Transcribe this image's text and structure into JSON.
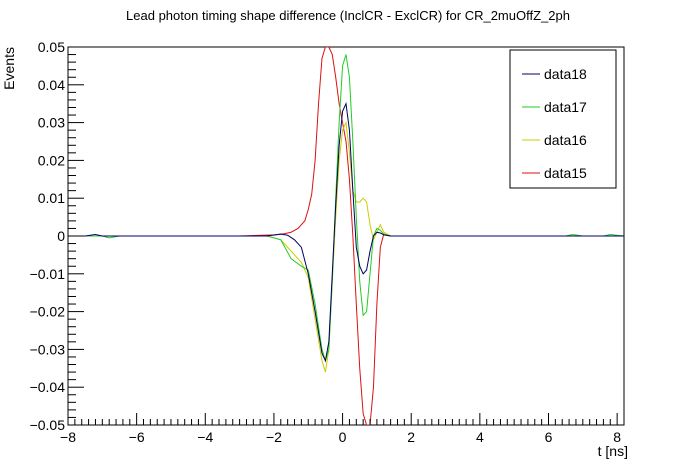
{
  "chart_data": {
    "type": "line",
    "title": "Lead photon timing shape difference (InclCR - ExclCR) for CR_2muOffZ_2ph",
    "xlabel": "t [ns]",
    "ylabel": "Events",
    "xlim": [
      -8,
      8.2
    ],
    "ylim": [
      -0.05,
      0.05
    ],
    "grid": false,
    "legend_position": "top-right",
    "x_ticks": [
      {
        "v": -8,
        "label": "−8"
      },
      {
        "v": -6,
        "label": "−6"
      },
      {
        "v": -4,
        "label": "−4"
      },
      {
        "v": -2,
        "label": "−2"
      },
      {
        "v": 0,
        "label": "0"
      },
      {
        "v": 2,
        "label": "2"
      },
      {
        "v": 4,
        "label": "4"
      },
      {
        "v": 6,
        "label": "6"
      },
      {
        "v": 8,
        "label": "8"
      }
    ],
    "y_ticks": [
      {
        "v": 0.05,
        "label": "0.05"
      },
      {
        "v": 0.04,
        "label": "0.04"
      },
      {
        "v": 0.03,
        "label": "0.03"
      },
      {
        "v": 0.02,
        "label": "0.02"
      },
      {
        "v": 0.01,
        "label": "0.01"
      },
      {
        "v": 0,
        "label": "0"
      },
      {
        "v": -0.01,
        "label": "−0.01"
      },
      {
        "v": -0.02,
        "label": "−0.02"
      },
      {
        "v": -0.03,
        "label": "−0.03"
      },
      {
        "v": -0.04,
        "label": "−0.04"
      },
      {
        "v": -0.05,
        "label": "−0.05"
      }
    ],
    "series": [
      {
        "name": "data15",
        "color": "#dd1111",
        "points": [
          [
            -8,
            0
          ],
          [
            -3,
            0
          ],
          [
            -2,
            0.0003
          ],
          [
            -1.7,
            0.0006
          ],
          [
            -1.5,
            0.001
          ],
          [
            -1.3,
            0.002
          ],
          [
            -1.1,
            0.004
          ],
          [
            -1.0,
            0.007
          ],
          [
            -0.9,
            0.011
          ],
          [
            -0.8,
            0.02
          ],
          [
            -0.7,
            0.035
          ],
          [
            -0.6,
            0.047
          ],
          [
            -0.5,
            0.05
          ],
          [
            -0.4,
            0.05
          ],
          [
            -0.3,
            0.048
          ],
          [
            -0.2,
            0.042
          ],
          [
            -0.1,
            0.035
          ],
          [
            0,
            0.03
          ],
          [
            0.1,
            0.025
          ],
          [
            0.2,
            0.015
          ],
          [
            0.3,
            0.0
          ],
          [
            0.4,
            -0.018
          ],
          [
            0.5,
            -0.035
          ],
          [
            0.6,
            -0.047
          ],
          [
            0.7,
            -0.05
          ],
          [
            0.8,
            -0.05
          ],
          [
            0.9,
            -0.04
          ],
          [
            1.0,
            -0.018
          ],
          [
            1.1,
            -0.003
          ],
          [
            1.2,
            0.0005
          ],
          [
            1.4,
            0
          ],
          [
            8.2,
            0
          ]
        ]
      },
      {
        "name": "data16",
        "color": "#cccc00",
        "points": [
          [
            -8,
            0
          ],
          [
            -2.2,
            0
          ],
          [
            -1.8,
            -0.001
          ],
          [
            -1.5,
            -0.004
          ],
          [
            -1.2,
            -0.007
          ],
          [
            -1.0,
            -0.011
          ],
          [
            -0.8,
            -0.022
          ],
          [
            -0.6,
            -0.033
          ],
          [
            -0.5,
            -0.036
          ],
          [
            -0.4,
            -0.03
          ],
          [
            -0.3,
            -0.012
          ],
          [
            -0.2,
            0.005
          ],
          [
            -0.1,
            0.02
          ],
          [
            0,
            0.028
          ],
          [
            0.1,
            0.03
          ],
          [
            0.2,
            0.022
          ],
          [
            0.3,
            0.012
          ],
          [
            0.4,
            0.009
          ],
          [
            0.5,
            0.009
          ],
          [
            0.6,
            0.01
          ],
          [
            0.7,
            0.009
          ],
          [
            0.8,
            0.003
          ],
          [
            0.9,
            -0.001
          ],
          [
            1.0,
            0.001
          ],
          [
            1.1,
            0.003
          ],
          [
            1.2,
            0.001
          ],
          [
            1.4,
            0
          ],
          [
            8.2,
            0
          ]
        ]
      },
      {
        "name": "data17",
        "color": "#22cc22",
        "points": [
          [
            -8,
            0
          ],
          [
            -7,
            0
          ],
          [
            -6.8,
            -0.0005
          ],
          [
            -6.5,
            0
          ],
          [
            -2.2,
            0
          ],
          [
            -1.8,
            -0.001
          ],
          [
            -1.5,
            -0.006
          ],
          [
            -1.2,
            -0.008
          ],
          [
            -1.0,
            -0.009
          ],
          [
            -0.8,
            -0.018
          ],
          [
            -0.6,
            -0.03
          ],
          [
            -0.5,
            -0.033
          ],
          [
            -0.4,
            -0.03
          ],
          [
            -0.3,
            -0.012
          ],
          [
            -0.2,
            0.01
          ],
          [
            -0.1,
            0.03
          ],
          [
            0,
            0.045
          ],
          [
            0.1,
            0.048
          ],
          [
            0.2,
            0.042
          ],
          [
            0.3,
            0.025
          ],
          [
            0.4,
            0.005
          ],
          [
            0.5,
            -0.012
          ],
          [
            0.6,
            -0.021
          ],
          [
            0.7,
            -0.02
          ],
          [
            0.8,
            -0.01
          ],
          [
            0.9,
            0
          ],
          [
            1.0,
            0.002
          ],
          [
            1.1,
            0.0015
          ],
          [
            1.2,
            0.0005
          ],
          [
            1.4,
            0
          ],
          [
            6.5,
            0
          ],
          [
            6.7,
            0.0004
          ],
          [
            7,
            0
          ],
          [
            7.6,
            0
          ],
          [
            7.8,
            0.0004
          ],
          [
            8.2,
            0
          ]
        ]
      },
      {
        "name": "data18",
        "color": "#000066",
        "points": [
          [
            -8,
            0
          ],
          [
            -7.5,
            0
          ],
          [
            -7.2,
            0.0004
          ],
          [
            -7,
            0
          ],
          [
            -2.2,
            0
          ],
          [
            -1.8,
            0.0005
          ],
          [
            -1.6,
            0.0002
          ],
          [
            -1.4,
            -0.001
          ],
          [
            -1.2,
            -0.003
          ],
          [
            -1.0,
            -0.01
          ],
          [
            -0.8,
            -0.02
          ],
          [
            -0.6,
            -0.031
          ],
          [
            -0.5,
            -0.033
          ],
          [
            -0.4,
            -0.028
          ],
          [
            -0.3,
            -0.01
          ],
          [
            -0.2,
            0.008
          ],
          [
            -0.1,
            0.024
          ],
          [
            0,
            0.033
          ],
          [
            0.1,
            0.035
          ],
          [
            0.2,
            0.028
          ],
          [
            0.3,
            0.012
          ],
          [
            0.4,
            -0.003
          ],
          [
            0.5,
            -0.008
          ],
          [
            0.6,
            -0.01
          ],
          [
            0.7,
            -0.009
          ],
          [
            0.8,
            -0.004
          ],
          [
            0.9,
            0
          ],
          [
            1.0,
            0.001
          ],
          [
            1.1,
            0.0008
          ],
          [
            1.2,
            0.0003
          ],
          [
            1.4,
            0
          ],
          [
            8.2,
            0
          ]
        ]
      }
    ],
    "legend": [
      "data18",
      "data17",
      "data16",
      "data15"
    ]
  }
}
